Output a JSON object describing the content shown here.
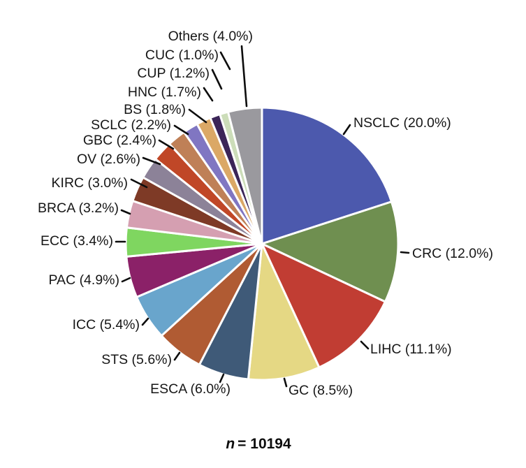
{
  "chart_data": {
    "type": "pie",
    "title": "",
    "legend_position": "none",
    "direction": "clockwise",
    "start_angle": "12-oclock",
    "label_format": "{label} ({pct}%)",
    "caption": {
      "symbol": "n",
      "value": "= 10194"
    },
    "text_color": "#161616",
    "slices": [
      {
        "label": "NSCLC",
        "pct": 20.0,
        "color": "#4C59AD"
      },
      {
        "label": "CRC",
        "pct": 12.0,
        "color": "#6F8F50"
      },
      {
        "label": "LIHC",
        "pct": 11.1,
        "color": "#C13D33"
      },
      {
        "label": "GC",
        "pct": 8.5,
        "color": "#E5D884"
      },
      {
        "label": "ESCA",
        "pct": 6.0,
        "color": "#3F5A78"
      },
      {
        "label": "STS",
        "pct": 5.6,
        "color": "#B05B33"
      },
      {
        "label": "ICC",
        "pct": 5.4,
        "color": "#69A5CC"
      },
      {
        "label": "PAC",
        "pct": 4.9,
        "color": "#8B2168"
      },
      {
        "label": "ECC",
        "pct": 3.4,
        "color": "#7FD660"
      },
      {
        "label": "BRCA",
        "pct": 3.2,
        "color": "#D59FB1"
      },
      {
        "label": "KIRC",
        "pct": 3.0,
        "color": "#7E3A26"
      },
      {
        "label": "OV",
        "pct": 2.6,
        "color": "#8C8298"
      },
      {
        "label": "GBC",
        "pct": 2.4,
        "color": "#C04727"
      },
      {
        "label": "SCLC",
        "pct": 2.2,
        "color": "#BF8057"
      },
      {
        "label": "BS",
        "pct": 1.8,
        "color": "#8076C2"
      },
      {
        "label": "HNC",
        "pct": 1.7,
        "color": "#DBA866"
      },
      {
        "label": "CUP",
        "pct": 1.2,
        "color": "#3B2558"
      },
      {
        "label": "CUC",
        "pct": 1.0,
        "color": "#CCDDB9"
      },
      {
        "label": "Others",
        "pct": 4.0,
        "color": "#9A999E"
      }
    ]
  }
}
